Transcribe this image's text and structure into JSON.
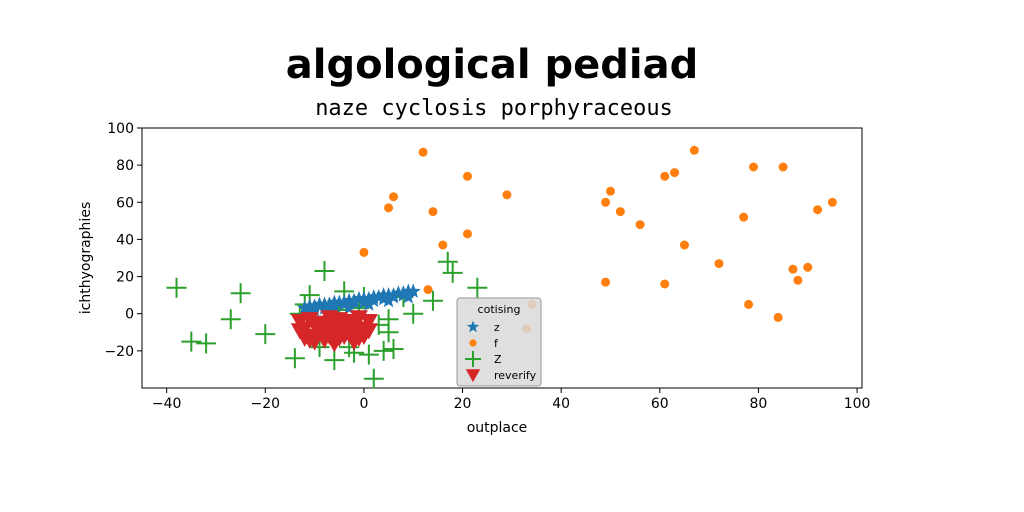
{
  "chart_data": {
    "type": "scatter",
    "title": "algological pediad",
    "subtitle": "naze cyclosis porphyraceous",
    "xlabel": "outplace",
    "ylabel": "ichthyographies",
    "xlim": [
      -45,
      101
    ],
    "ylim": [
      -40,
      100
    ],
    "xticks": [
      -40,
      -20,
      0,
      20,
      40,
      60,
      80,
      100
    ],
    "yticks": [
      -20,
      0,
      20,
      40,
      60,
      80,
      100
    ],
    "xtick_labels": [
      "−40",
      "−20",
      "0",
      "20",
      "40",
      "60",
      "80",
      "100"
    ],
    "ytick_labels": [
      "−20",
      "0",
      "20",
      "40",
      "60",
      "80",
      "100"
    ],
    "grid": false,
    "legend": {
      "title": "cotising",
      "position": "lower-center"
    },
    "series": [
      {
        "name": "z",
        "marker": "star",
        "color": "#1f77b4",
        "x": [
          -12,
          -11,
          -10,
          -9,
          -8,
          -7,
          -6,
          -5,
          -4,
          -3,
          -2,
          -1,
          0,
          1,
          2,
          3,
          4,
          5,
          6,
          7,
          8,
          9,
          10,
          -10,
          -8,
          -6,
          -4,
          -2,
          0,
          2,
          4,
          6,
          8,
          -11,
          -7,
          -3,
          1,
          5,
          9
        ],
        "y": [
          3,
          4,
          4,
          5,
          5,
          5,
          6,
          6,
          6,
          7,
          7,
          8,
          8,
          8,
          9,
          9,
          10,
          10,
          10,
          11,
          11,
          12,
          12,
          2,
          3,
          4,
          5,
          6,
          6,
          7,
          8,
          9,
          10,
          1,
          2,
          3,
          5,
          7,
          9
        ]
      },
      {
        "name": "f",
        "marker": "circle",
        "color": "#ff7f0e",
        "x": [
          12,
          21,
          29,
          6,
          5,
          14,
          16,
          21,
          0,
          13,
          34,
          67,
          63,
          61,
          50,
          49,
          52,
          56,
          65,
          72,
          77,
          79,
          85,
          92,
          95,
          87,
          90,
          88,
          78,
          84,
          61,
          49,
          33
        ],
        "y": [
          87,
          74,
          64,
          63,
          57,
          55,
          37,
          43,
          33,
          13,
          5,
          88,
          76,
          74,
          66,
          60,
          55,
          48,
          37,
          27,
          52,
          79,
          79,
          56,
          60,
          24,
          25,
          18,
          5,
          -2,
          16,
          17,
          -8
        ]
      },
      {
        "name": "Z",
        "marker": "plus",
        "color": "#2ca02c",
        "x": [
          -38,
          -35,
          -32,
          -27,
          -25,
          -20,
          -14,
          -13,
          -12,
          -11,
          -9,
          -8,
          -7,
          -6,
          -5,
          -4,
          -3,
          -3,
          -2,
          -1,
          0,
          1,
          2,
          3,
          4,
          5,
          5,
          6,
          8,
          10,
          14,
          17,
          18,
          23,
          -8,
          -4
        ],
        "y": [
          14,
          -15,
          -16,
          -3,
          11,
          -11,
          -24,
          0,
          5,
          10,
          -18,
          23,
          3,
          -25,
          2,
          12,
          -10,
          -18,
          -21,
          3,
          9,
          -22,
          -35,
          -6,
          -20,
          -3,
          -10,
          -19,
          9,
          0,
          7,
          28,
          22,
          14,
          -13,
          -8
        ]
      },
      {
        "name": "reverify",
        "marker": "triangle-down",
        "color": "#d62728",
        "x": [
          -13,
          -12,
          -11,
          -10,
          -9,
          -8,
          -7,
          -6,
          -5,
          -4,
          -3,
          -2,
          -1,
          0,
          1,
          -13,
          -11,
          -9,
          -7,
          -5,
          -3,
          -1,
          1,
          -12,
          -10,
          -8,
          -6,
          -4,
          -2,
          0,
          -11,
          -9,
          -7,
          -5,
          -3,
          -1
        ],
        "y": [
          -4,
          -8,
          -12,
          -6,
          -10,
          -14,
          -5,
          -9,
          -13,
          -7,
          -11,
          -6,
          -10,
          -8,
          -4,
          -9,
          -3,
          -5,
          -2,
          -3,
          -4,
          -2,
          -9,
          -13,
          -15,
          -11,
          -16,
          -12,
          -15,
          -12,
          -14,
          -8,
          -12,
          -8,
          -7,
          -13
        ]
      }
    ]
  }
}
